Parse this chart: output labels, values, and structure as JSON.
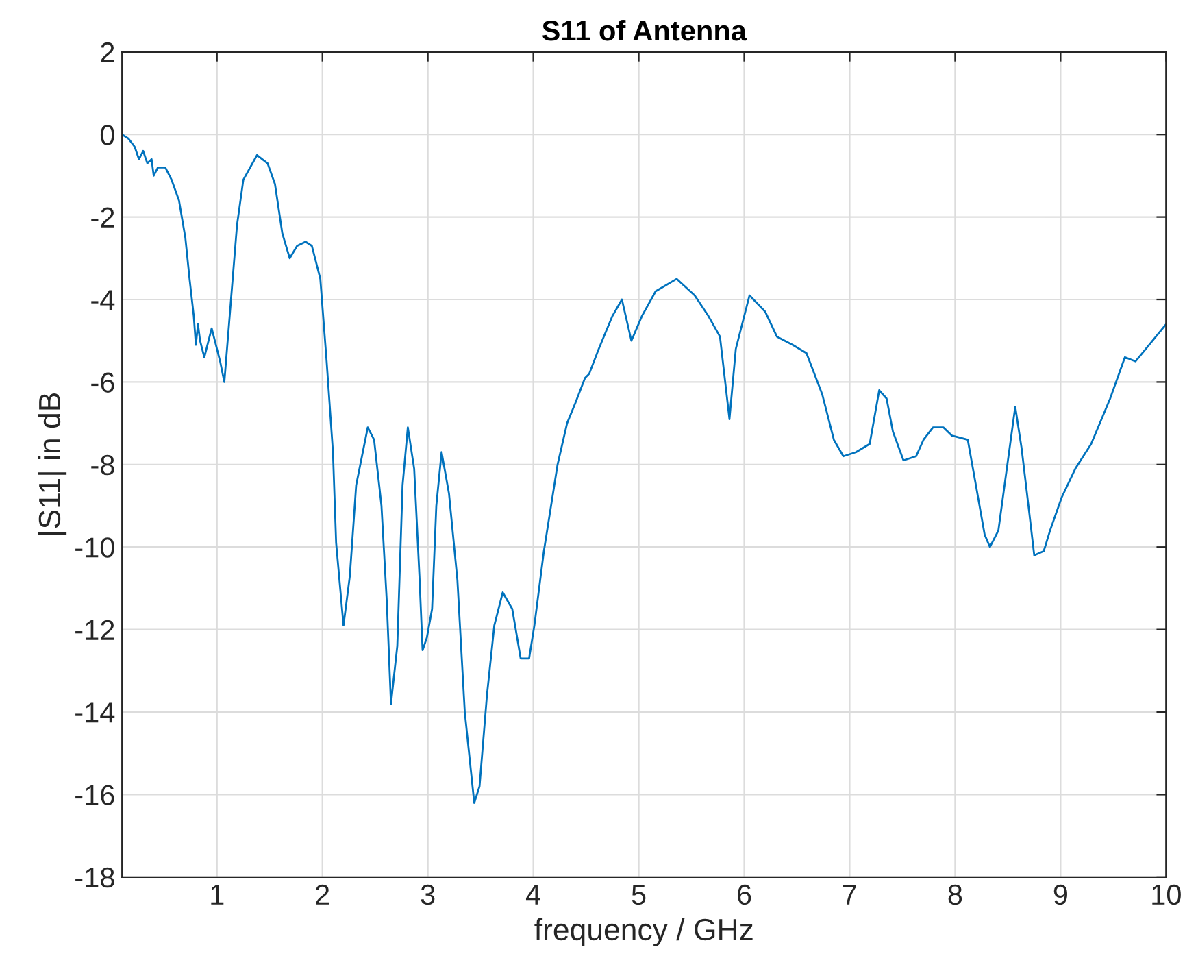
{
  "chart_data": {
    "type": "line",
    "title": "S11 of Antenna",
    "xlabel": "frequency / GHz",
    "ylabel": "|S11| in dB",
    "xlim": [
      0.1,
      10
    ],
    "ylim": [
      -18,
      2
    ],
    "xticks": [
      1,
      2,
      3,
      4,
      5,
      6,
      7,
      8,
      9,
      10
    ],
    "yticks": [
      -18,
      -16,
      -14,
      -12,
      -10,
      -8,
      -6,
      -4,
      -2,
      0,
      2
    ],
    "grid": true,
    "marker": "none",
    "line_style": "solid",
    "series": [
      {
        "color": "#0072bd",
        "x": [
          0.1,
          0.16,
          0.22,
          0.26,
          0.3,
          0.34,
          0.38,
          0.4,
          0.44,
          0.51,
          0.57,
          0.64,
          0.7,
          0.74,
          0.78,
          0.8,
          0.82,
          0.84,
          0.88,
          0.92,
          0.95,
          0.99,
          1.03,
          1.07,
          1.13,
          1.19,
          1.25,
          1.38,
          1.48,
          1.55,
          1.62,
          1.69,
          1.76,
          1.84,
          1.9,
          1.98,
          2.04,
          2.1,
          2.13,
          2.2,
          2.26,
          2.32,
          2.43,
          2.49,
          2.56,
          2.61,
          2.65,
          2.71,
          2.76,
          2.81,
          2.87,
          2.92,
          2.95,
          2.99,
          3.04,
          3.08,
          3.13,
          3.2,
          3.28,
          3.35,
          3.44,
          3.49,
          3.56,
          3.63,
          3.71,
          3.8,
          3.88,
          3.96,
          4.01,
          4.1,
          4.23,
          4.32,
          4.4,
          4.49,
          4.53,
          4.62,
          4.75,
          4.84,
          4.93,
          5.03,
          5.16,
          5.36,
          5.53,
          5.66,
          5.77,
          5.86,
          5.92,
          6.05,
          6.2,
          6.31,
          6.46,
          6.59,
          6.74,
          6.85,
          6.94,
          7.06,
          7.19,
          7.28,
          7.35,
          7.41,
          7.51,
          7.63,
          7.7,
          7.79,
          7.89,
          7.97,
          8.12,
          8.19,
          8.28,
          8.33,
          8.41,
          8.49,
          8.57,
          8.63,
          8.7,
          8.75,
          8.84,
          8.9,
          9.01,
          9.14,
          9.29,
          9.47,
          9.61,
          9.71,
          9.84,
          10.0
        ],
        "values": [
          0.0,
          -0.1,
          -0.3,
          -0.6,
          -0.4,
          -0.7,
          -0.6,
          -1.0,
          -0.8,
          -0.8,
          -1.1,
          -1.6,
          -2.5,
          -3.5,
          -4.4,
          -5.1,
          -4.6,
          -5.0,
          -5.4,
          -5.0,
          -4.7,
          -5.1,
          -5.5,
          -6.0,
          -4.1,
          -2.2,
          -1.1,
          -0.5,
          -0.7,
          -1.2,
          -2.4,
          -3.0,
          -2.7,
          -2.6,
          -2.7,
          -3.5,
          -5.5,
          -7.7,
          -9.9,
          -11.9,
          -10.7,
          -8.5,
          -7.1,
          -7.4,
          -9.0,
          -11.3,
          -13.8,
          -12.4,
          -8.5,
          -7.1,
          -8.1,
          -10.7,
          -12.5,
          -12.2,
          -11.5,
          -9.0,
          -7.7,
          -8.7,
          -10.8,
          -14.0,
          -16.2,
          -15.8,
          -13.6,
          -11.9,
          -11.1,
          -11.5,
          -12.7,
          -12.7,
          -11.9,
          -10.1,
          -8.0,
          -7.0,
          -6.5,
          -5.9,
          -5.8,
          -5.2,
          -4.4,
          -4.0,
          -5.0,
          -4.4,
          -3.8,
          -3.5,
          -3.9,
          -4.4,
          -4.9,
          -6.9,
          -5.2,
          -3.9,
          -4.3,
          -4.9,
          -5.1,
          -5.3,
          -6.3,
          -7.4,
          -7.8,
          -7.7,
          -7.5,
          -6.2,
          -6.4,
          -7.2,
          -7.9,
          -7.8,
          -7.4,
          -7.1,
          -7.1,
          -7.3,
          -7.4,
          -8.4,
          -9.7,
          -10.0,
          -9.6,
          -8.1,
          -6.6,
          -7.6,
          -9.1,
          -10.2,
          -10.1,
          -9.6,
          -8.8,
          -8.1,
          -7.5,
          -6.4,
          -5.4,
          -5.5,
          -5.1,
          -4.6
        ]
      }
    ]
  }
}
